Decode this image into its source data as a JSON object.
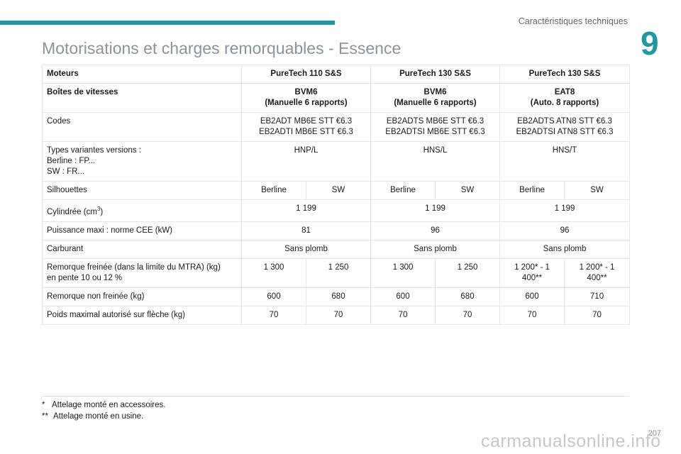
{
  "header": {
    "section_title": "Caractéristiques techniques",
    "chapter_number": "9",
    "accent_color": "#1f9aa5"
  },
  "page_title": "Motorisations et charges remorquables - Essence",
  "table": {
    "moteurs": {
      "label": "Moteurs",
      "values": [
        "PureTech 110 S&S",
        "PureTech 130 S&S",
        "PureTech 130 S&S"
      ]
    },
    "boites": {
      "label": "Boîtes de vitesses",
      "values": [
        [
          "BVM6",
          "(Manuelle 6 rapports)"
        ],
        [
          "BVM6",
          "(Manuelle 6 rapports)"
        ],
        [
          "EAT8",
          "(Auto. 8 rapports)"
        ]
      ]
    },
    "codes": {
      "label": "Codes",
      "values": [
        [
          "EB2ADT MB6E STT €6.3",
          "EB2ADTI MB6E STT €6.3"
        ],
        [
          "EB2ADTS MB6E STT €6.3",
          "EB2ADTSI MB6E STT €6.3"
        ],
        [
          "EB2ADTS ATN8 STT €6.3",
          "EB2ADTSI ATN8 STT €6.3"
        ]
      ]
    },
    "types": {
      "label": [
        "Types variantes versions :",
        "Berline : FP...",
        "SW : FR..."
      ],
      "values": [
        "HNP/L",
        "HNS/L",
        "HNS/T"
      ]
    },
    "silhouettes": {
      "label": "Silhouettes",
      "values": [
        "Berline",
        "SW",
        "Berline",
        "SW",
        "Berline",
        "SW"
      ]
    },
    "cylindree": {
      "label": "Cylindrée (cm",
      "label_sup": "3",
      "label_end": ")",
      "values": [
        "1 199",
        "1 199",
        "1 199"
      ]
    },
    "puissance": {
      "label": "Puissance maxi : norme CEE (kW)",
      "values": [
        "81",
        "96",
        "96"
      ]
    },
    "carburant": {
      "label": "Carburant",
      "values": [
        "Sans plomb",
        "Sans plomb",
        "Sans plomb"
      ]
    },
    "remorque_freinee": {
      "label": [
        "Remorque freinée (dans la limite du MTRA) (kg)",
        "en pente 10 ou 12 %"
      ],
      "values": [
        [
          "1 300"
        ],
        [
          "1 250"
        ],
        [
          "1 300"
        ],
        [
          "1 250"
        ],
        [
          "1 200* - 1",
          "400**"
        ],
        [
          "1 200* - 1",
          "400**"
        ]
      ]
    },
    "remorque_non_freinee": {
      "label": "Remorque non freinée (kg)",
      "values": [
        "600",
        "680",
        "600",
        "680",
        "600",
        "710"
      ]
    },
    "poids_fleche": {
      "label": "Poids maximal autorisé sur flèche (kg)",
      "values": [
        "70",
        "70",
        "70",
        "70",
        "70",
        "70"
      ]
    }
  },
  "footnotes": [
    {
      "marker": "*",
      "text": "Attelage monté en accessoires."
    },
    {
      "marker": "**",
      "text": "Attelage monté en usine."
    }
  ],
  "page_number": "207",
  "watermark": "carmanualsonline.info"
}
